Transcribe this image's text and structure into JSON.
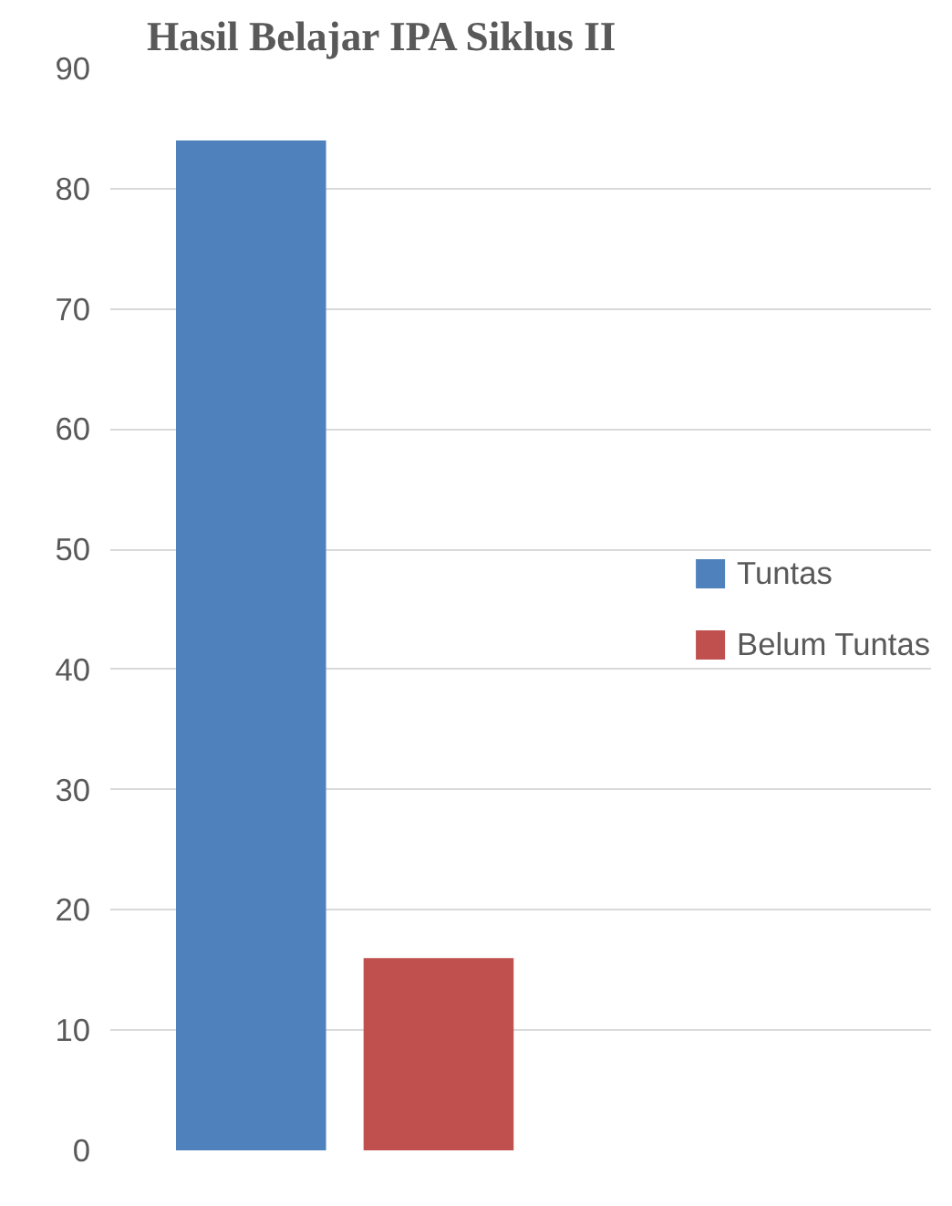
{
  "chart_data": {
    "type": "bar",
    "title": "Hasil Belajar IPA Siklus II",
    "categories": [
      null
    ],
    "series": [
      {
        "name": "Tuntas",
        "color": "#4f81bd",
        "values": [
          84
        ]
      },
      {
        "name": "Belum Tuntas",
        "color": "#c0504d",
        "values": [
          16
        ]
      }
    ],
    "ylim": [
      0,
      90
    ],
    "yticks": [
      0,
      10,
      20,
      30,
      40,
      50,
      60,
      70,
      80,
      90
    ],
    "grid": "y",
    "legend": "right"
  }
}
